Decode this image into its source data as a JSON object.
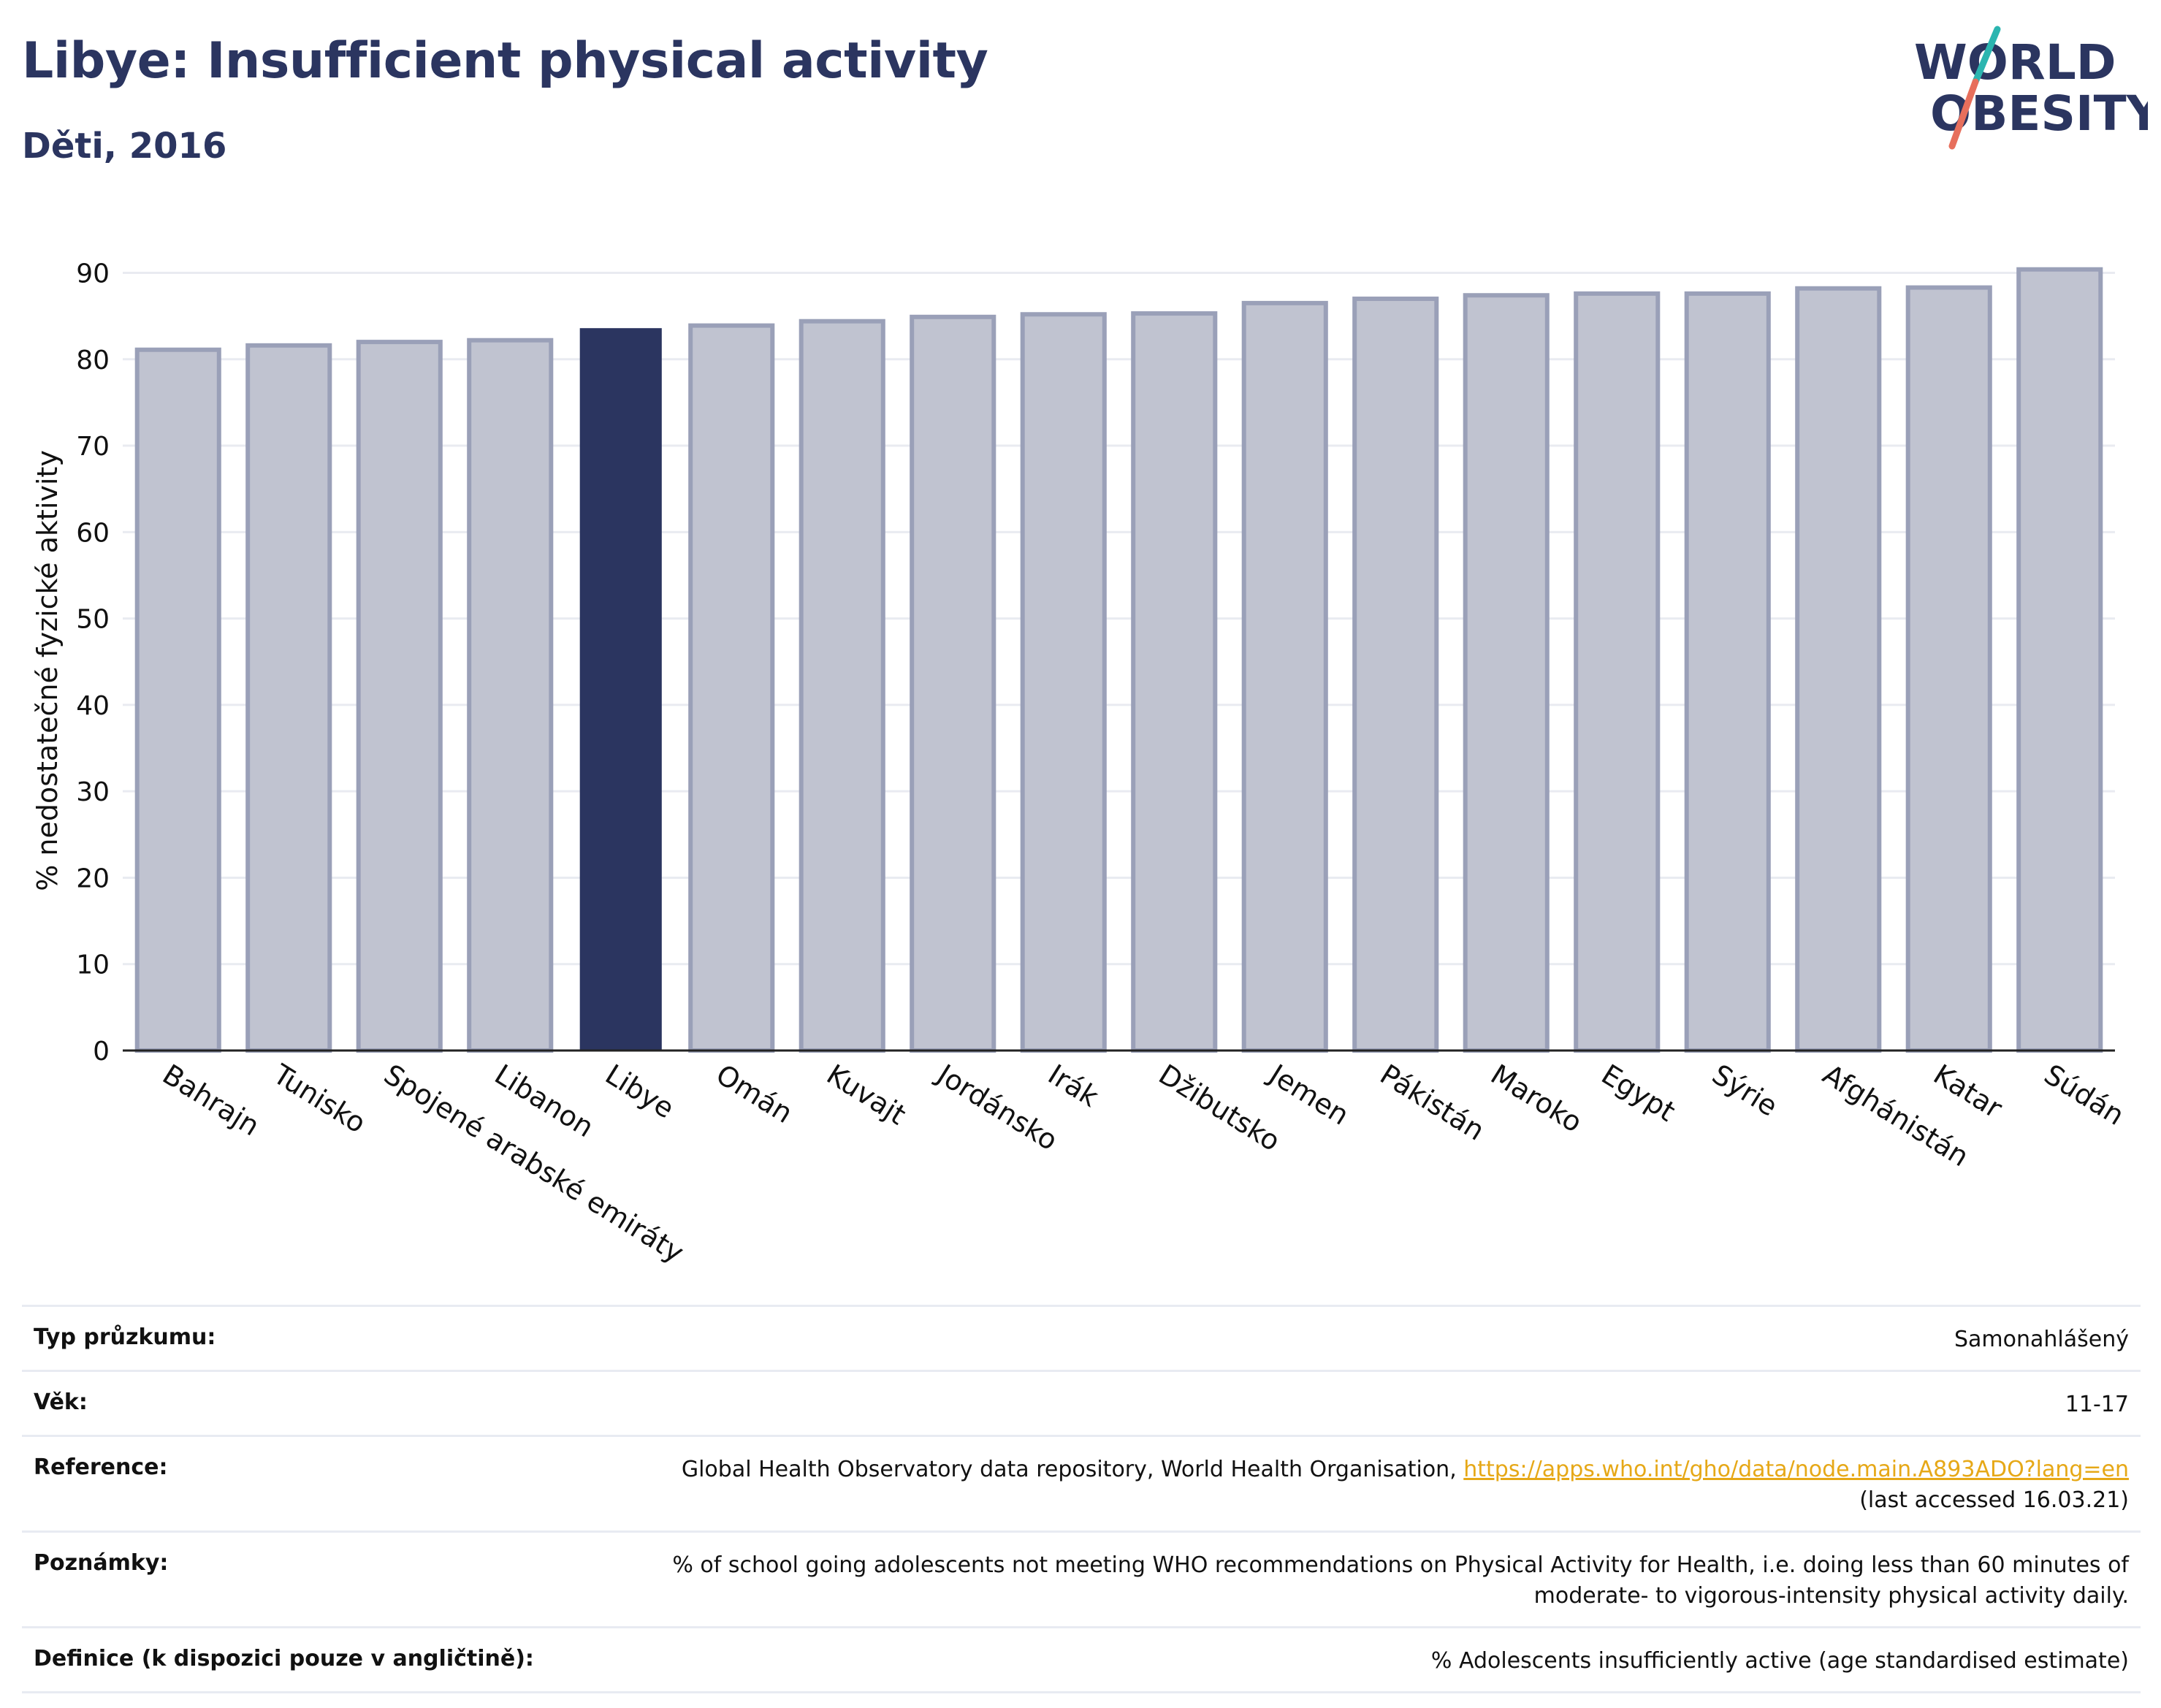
{
  "header": {
    "title": "Libye: Insufficient physical activity",
    "subtitle": "Děti, 2016"
  },
  "logo": {
    "line1": "WORLD",
    "line2": "OBESITY",
    "colors": {
      "text": "#2b3560",
      "teal": "#2bb5b0",
      "coral": "#e76f5c"
    }
  },
  "chart_data": {
    "type": "bar",
    "ylabel": "% nedostatečné fyzické aktivity",
    "ylim": [
      0,
      93
    ],
    "yticks": [
      0,
      10,
      20,
      30,
      40,
      50,
      60,
      70,
      80,
      90
    ],
    "grid": true,
    "highlight": "Libye",
    "colors": {
      "bar": "#c0c3d0",
      "bar_edge": "#9aa0b8",
      "highlight": "#2b3560"
    },
    "categories": [
      "Bahrajn",
      "Tunisko",
      "Spojené arabské emiráty",
      "Libanon",
      "Libye",
      "Omán",
      "Kuvajt",
      "Jordánsko",
      "Irák",
      "Džibutsko",
      "Jemen",
      "Pákistán",
      "Maroko",
      "Egypt",
      "Sýrie",
      "Afghánistán",
      "Katar",
      "Súdán"
    ],
    "values": [
      81.1,
      81.6,
      82.0,
      82.2,
      83.6,
      83.9,
      84.4,
      84.9,
      85.2,
      85.3,
      86.5,
      87.0,
      87.4,
      87.6,
      87.6,
      88.2,
      88.3,
      90.4
    ]
  },
  "info": {
    "survey_type": {
      "label": "Typ průzkumu:",
      "value": "Samonahlášený"
    },
    "age": {
      "label": "Věk:",
      "value": "11-17"
    },
    "reference": {
      "label": "Reference:",
      "text": "Global Health Observatory data repository, World Health Organisation, ",
      "link": "https://apps.who.int/gho/data/node.main.A893ADO?lang=en",
      "accessed": "(last accessed 16.03.21)"
    },
    "notes": {
      "label": "Poznámky:",
      "line1": "% of school going adolescents not meeting WHO recommendations on Physical Activity for Health, i.e. doing less than 60 minutes of",
      "line2": "moderate- to vigorous-intensity physical activity daily."
    },
    "definition": {
      "label": "Definice (k dispozici pouze v angličtině):",
      "value": "% Adolescents insufficiently active (age standardised estimate)"
    }
  }
}
